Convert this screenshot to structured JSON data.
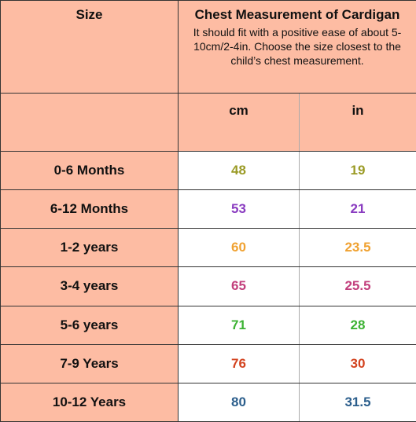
{
  "table": {
    "header": {
      "size": "Size",
      "title": "Chest Measurement of Cardigan",
      "note": "It should fit with a positive ease of about 5-10cm/2-4in. Choose the size closest to the child’s chest measurement.",
      "cm": "cm",
      "in": "in"
    },
    "rows": [
      {
        "size": "0-6 Months",
        "cm": 48,
        "in": 19,
        "color": "#9b9b26"
      },
      {
        "size": "6-12 Months",
        "cm": 53,
        "in": 21,
        "color": "#8a3cc0"
      },
      {
        "size": "1-2 years",
        "cm": 60,
        "in": 23.5,
        "color": "#f0a232"
      },
      {
        "size": "3-4 years",
        "cm": 65,
        "in": 25.5,
        "color": "#c23f7c"
      },
      {
        "size": "5-6 years",
        "cm": 71,
        "in": 28,
        "color": "#3cb233"
      },
      {
        "size": "7-9 Years",
        "cm": 76,
        "in": 30,
        "color": "#d3431f"
      },
      {
        "size": "10-12 Years",
        "cm": 80,
        "in": 31.5,
        "color": "#2b5e8c"
      }
    ]
  }
}
